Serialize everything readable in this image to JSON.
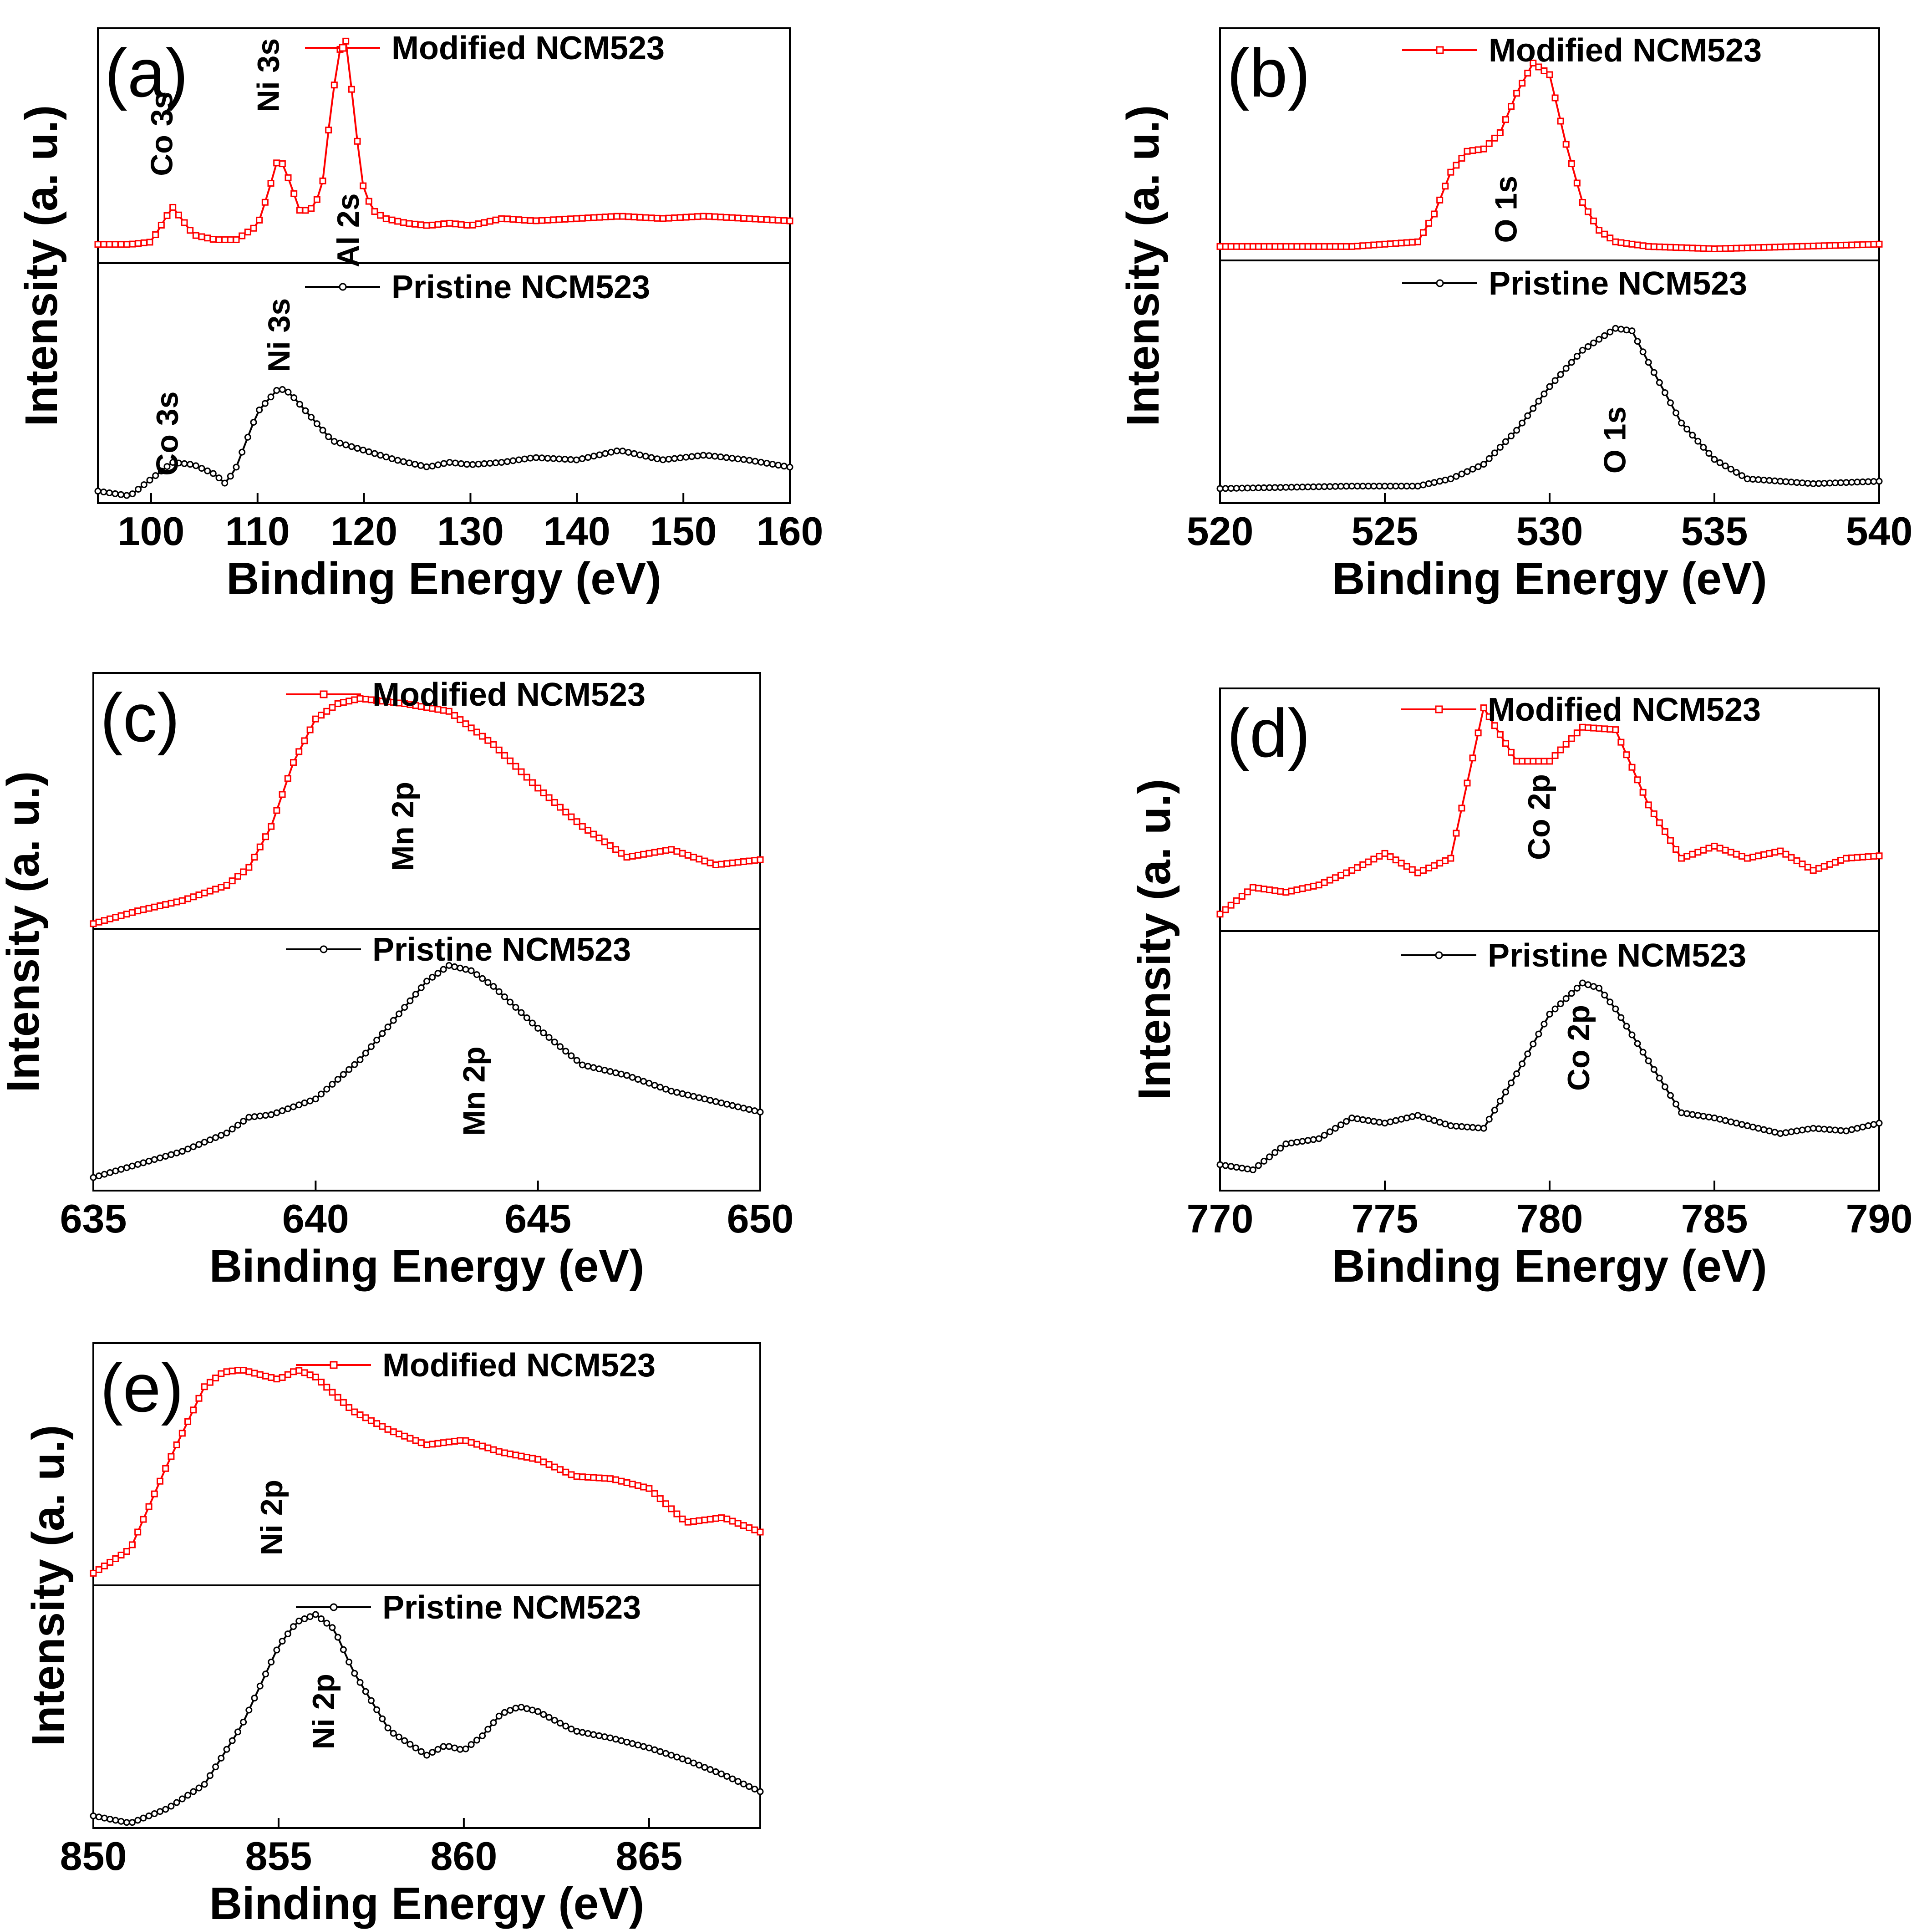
{
  "chart_data": [
    {
      "type": "line",
      "panel": "(a)",
      "xlabel": "Binding Energy (eV)",
      "ylabel": "Intensity (a. u.)",
      "xlim": [
        95,
        160
      ],
      "ylim": [
        0,
        1
      ],
      "xticks": [
        "100",
        "110",
        "120",
        "130",
        "140",
        "150",
        "160"
      ],
      "series": [
        {
          "name": "Modified NCM523",
          "color": "#ff0000",
          "marker": "square",
          "x": [
            95,
            98,
            100,
            102,
            104,
            106,
            108,
            110,
            111,
            112,
            113,
            114,
            115,
            116,
            117,
            118,
            118.5,
            119,
            120,
            121,
            122,
            124,
            126,
            128,
            130,
            133,
            136,
            140,
            144,
            148,
            152,
            156,
            160
          ],
          "y": [
            0.08,
            0.08,
            0.09,
            0.24,
            0.12,
            0.1,
            0.1,
            0.16,
            0.3,
            0.46,
            0.35,
            0.22,
            0.23,
            0.3,
            0.7,
            0.98,
            0.92,
            0.65,
            0.3,
            0.22,
            0.19,
            0.17,
            0.16,
            0.17,
            0.16,
            0.19,
            0.18,
            0.19,
            0.2,
            0.19,
            0.2,
            0.19,
            0.18
          ]
        },
        {
          "name": "Pristine NCM523",
          "color": "#000000",
          "marker": "circle",
          "x": [
            95,
            98,
            100,
            102,
            104,
            106,
            107,
            108,
            110,
            112,
            113,
            115,
            117,
            120,
            123,
            126,
            128,
            130,
            133,
            136,
            140,
            144,
            148,
            152,
            156,
            160
          ],
          "y": [
            0.05,
            0.03,
            0.1,
            0.17,
            0.16,
            0.12,
            0.08,
            0.15,
            0.38,
            0.48,
            0.46,
            0.36,
            0.26,
            0.22,
            0.18,
            0.15,
            0.17,
            0.16,
            0.17,
            0.19,
            0.18,
            0.22,
            0.18,
            0.2,
            0.18,
            0.15
          ]
        }
      ],
      "annotations": [
        {
          "text": "Co 3s",
          "x": 102,
          "curve": "Modified NCM523",
          "level": 0.55
        },
        {
          "text": "Ni 3s",
          "x": 112,
          "curve": "Modified NCM523",
          "level": 0.8
        },
        {
          "text": "Al 2s",
          "x": 119.5,
          "curve": "Modified NCM523",
          "level": 0.14
        },
        {
          "text": "Co 3s",
          "x": 102.5,
          "curve": "Pristine NCM523",
          "level": 0.29
        },
        {
          "text": "Ni 3s",
          "x": 113,
          "curve": "Pristine NCM523",
          "level": 0.7
        }
      ]
    },
    {
      "type": "line",
      "panel": "(b)",
      "xlabel": "Binding Energy (eV)",
      "ylabel": "Intensity (a. u.)",
      "xlim": [
        520,
        540
      ],
      "ylim": [
        0,
        1
      ],
      "xticks": [
        "520",
        "525",
        "530",
        "535",
        "540"
      ],
      "series": [
        {
          "name": "Modified NCM523",
          "color": "#ff0000",
          "marker": "square",
          "x": [
            520,
            524,
            526,
            526.5,
            527,
            527.5,
            528,
            528.5,
            529,
            529.5,
            530,
            530.5,
            531,
            531.5,
            532,
            533,
            535,
            540
          ],
          "y": [
            0.06,
            0.06,
            0.08,
            0.2,
            0.38,
            0.47,
            0.48,
            0.55,
            0.72,
            0.85,
            0.8,
            0.5,
            0.25,
            0.13,
            0.08,
            0.06,
            0.05,
            0.07
          ]
        },
        {
          "name": "Pristine NCM523",
          "color": "#000000",
          "marker": "circle",
          "x": [
            520,
            524,
            526,
            527,
            528,
            529,
            530,
            531,
            532,
            532.5,
            533,
            534,
            535,
            536,
            538,
            540
          ],
          "y": [
            0.06,
            0.07,
            0.07,
            0.1,
            0.16,
            0.3,
            0.48,
            0.63,
            0.72,
            0.71,
            0.58,
            0.33,
            0.18,
            0.1,
            0.08,
            0.09
          ]
        }
      ],
      "annotations": [
        {
          "text": "O 1s",
          "x": 529,
          "curve": "Modified NCM523",
          "level": 0.22
        },
        {
          "text": "O 1s",
          "x": 532.3,
          "curve": "Pristine NCM523",
          "level": 0.26
        }
      ]
    },
    {
      "type": "line",
      "panel": "(c)",
      "xlabel": "Binding Energy (eV)",
      "ylabel": "Intensity (a. u.)",
      "xlim": [
        635,
        650
      ],
      "ylim": [
        0,
        1
      ],
      "xticks": [
        "635",
        "640",
        "645",
        "650"
      ],
      "series": [
        {
          "name": "Modified NCM523",
          "color": "#ff0000",
          "marker": "square",
          "x": [
            635,
            636,
            637,
            638,
            638.5,
            639,
            639.5,
            640,
            640.5,
            641,
            642,
            643,
            644,
            645,
            646,
            647,
            648,
            649,
            650
          ],
          "y": [
            0.02,
            0.07,
            0.11,
            0.17,
            0.24,
            0.4,
            0.65,
            0.82,
            0.88,
            0.9,
            0.88,
            0.85,
            0.72,
            0.55,
            0.4,
            0.28,
            0.31,
            0.25,
            0.27
          ]
        },
        {
          "name": "Pristine NCM523",
          "color": "#000000",
          "marker": "circle",
          "x": [
            635,
            636,
            637,
            638,
            638.5,
            639,
            640,
            641,
            642,
            642.5,
            643,
            643.5,
            644,
            645,
            646,
            647,
            648,
            649,
            650
          ],
          "y": [
            0.05,
            0.1,
            0.15,
            0.22,
            0.28,
            0.29,
            0.35,
            0.5,
            0.7,
            0.8,
            0.86,
            0.84,
            0.78,
            0.62,
            0.48,
            0.44,
            0.38,
            0.34,
            0.3
          ]
        }
      ],
      "annotations": [
        {
          "text": "Mn 2p",
          "x": 642.2,
          "curve": "Modified NCM523",
          "level": 0.4
        },
        {
          "text": "Mn 2p",
          "x": 643.8,
          "curve": "Pristine NCM523",
          "level": 0.38
        }
      ]
    },
    {
      "type": "line",
      "panel": "(d)",
      "xlabel": "Binding Energy (eV)",
      "ylabel": "Intensity (a. u.)",
      "xlim": [
        770,
        790
      ],
      "ylim": [
        0,
        1
      ],
      "xticks": [
        "770",
        "775",
        "780",
        "785",
        "790"
      ],
      "series": [
        {
          "name": "Modified NCM523",
          "color": "#ff0000",
          "marker": "square",
          "x": [
            770,
            771,
            772,
            773,
            774,
            775,
            776,
            777,
            778,
            779,
            780,
            781,
            782,
            783,
            784,
            785,
            786,
            787,
            788,
            789,
            790
          ],
          "y": [
            0.07,
            0.18,
            0.16,
            0.19,
            0.25,
            0.32,
            0.24,
            0.3,
            0.92,
            0.7,
            0.7,
            0.84,
            0.83,
            0.52,
            0.3,
            0.35,
            0.3,
            0.33,
            0.25,
            0.3,
            0.31
          ]
        },
        {
          "name": "Pristine NCM523",
          "color": "#000000",
          "marker": "circle",
          "x": [
            770,
            771,
            772,
            773,
            774,
            775,
            776,
            777,
            778,
            779,
            780,
            781,
            781.5,
            782,
            783,
            784,
            785,
            786,
            787,
            788,
            789,
            790
          ],
          "y": [
            0.1,
            0.08,
            0.18,
            0.2,
            0.28,
            0.26,
            0.29,
            0.25,
            0.24,
            0.45,
            0.68,
            0.8,
            0.78,
            0.7,
            0.5,
            0.3,
            0.28,
            0.25,
            0.22,
            0.24,
            0.23,
            0.26
          ]
        }
      ],
      "annotations": [
        {
          "text": "Co 2p",
          "x": 780,
          "curve": "Modified NCM523",
          "level": 0.47
        },
        {
          "text": "Co 2p",
          "x": 781.2,
          "curve": "Pristine NCM523",
          "level": 0.55
        }
      ]
    },
    {
      "type": "line",
      "panel": "(e)",
      "xlabel": "Binding Energy (eV)",
      "ylabel": "Intensity (a. u.)",
      "xlim": [
        850,
        868
      ],
      "ylim": [
        0,
        1
      ],
      "xticks": [
        "850",
        "855",
        "860",
        "865"
      ],
      "series": [
        {
          "name": "Modified NCM523",
          "color": "#ff0000",
          "marker": "square",
          "x": [
            850,
            851,
            852,
            853,
            853.5,
            854,
            855,
            855.5,
            856,
            857,
            858,
            859,
            860,
            861,
            862,
            863,
            864,
            865,
            866,
            867,
            868
          ],
          "y": [
            0.05,
            0.15,
            0.5,
            0.82,
            0.88,
            0.89,
            0.85,
            0.89,
            0.86,
            0.72,
            0.64,
            0.58,
            0.6,
            0.55,
            0.52,
            0.45,
            0.44,
            0.4,
            0.26,
            0.28,
            0.22
          ]
        },
        {
          "name": "Pristine NCM523",
          "color": "#000000",
          "marker": "circle",
          "x": [
            850,
            851,
            852,
            853,
            854,
            855,
            855.5,
            856,
            856.5,
            857,
            858,
            859,
            859.5,
            860,
            860.5,
            861,
            861.5,
            862,
            863,
            864,
            865,
            866,
            867,
            868
          ],
          "y": [
            0.05,
            0.02,
            0.08,
            0.18,
            0.42,
            0.75,
            0.85,
            0.88,
            0.82,
            0.65,
            0.4,
            0.3,
            0.34,
            0.32,
            0.38,
            0.47,
            0.5,
            0.48,
            0.4,
            0.37,
            0.33,
            0.28,
            0.22,
            0.15
          ]
        }
      ],
      "annotations": [
        {
          "text": "Ni 2p",
          "x": 855.1,
          "curve": "Modified NCM523",
          "level": 0.28
        },
        {
          "text": "Ni 2p",
          "x": 856.5,
          "curve": "Pristine NCM523",
          "level": 0.48
        }
      ]
    }
  ]
}
